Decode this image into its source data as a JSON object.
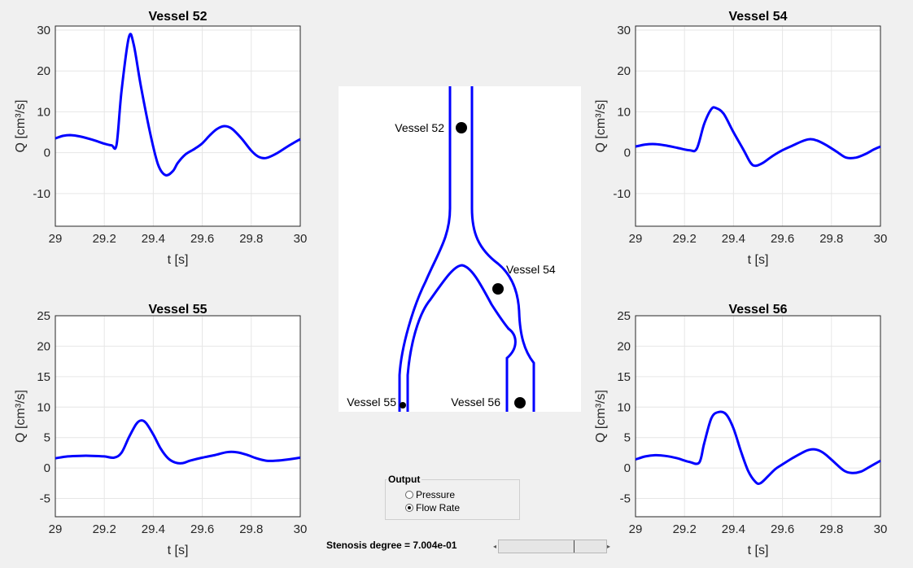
{
  "plots": [
    {
      "name": "vessel-52",
      "title": "Vessel 52",
      "ylabel": "Q [cm³/s]",
      "xlabel": "t [s]",
      "yticks": [
        "30",
        "20",
        "10",
        "0",
        "-10"
      ],
      "xticks": [
        "29",
        "29.2",
        "29.4",
        "29.6",
        "29.8",
        "30"
      ]
    },
    {
      "name": "vessel-54",
      "title": "Vessel 54",
      "ylabel": "Q [cm³/s]",
      "xlabel": "t [s]",
      "yticks": [
        "30",
        "20",
        "10",
        "0",
        "-10"
      ],
      "xticks": [
        "29",
        "29.2",
        "29.4",
        "29.6",
        "29.8",
        "30"
      ]
    },
    {
      "name": "vessel-55",
      "title": "Vessel 55",
      "ylabel": "Q [cm³/s]",
      "xlabel": "t [s]",
      "yticks": [
        "25",
        "20",
        "15",
        "10",
        "5",
        "0",
        "-5"
      ],
      "xticks": [
        "29",
        "29.2",
        "29.4",
        "29.6",
        "29.8",
        "30"
      ]
    },
    {
      "name": "vessel-56",
      "title": "Vessel 56",
      "ylabel": "Q [cm³/s]",
      "xlabel": "t [s]",
      "yticks": [
        "25",
        "20",
        "15",
        "10",
        "5",
        "0",
        "-5"
      ],
      "xticks": [
        "29",
        "29.2",
        "29.4",
        "29.6",
        "29.8",
        "30"
      ]
    }
  ],
  "chart_data": [
    {
      "type": "line",
      "title": "Vessel 52",
      "xlabel": "t [s]",
      "ylabel": "Q [cm³/s]",
      "xlim": [
        29,
        30
      ],
      "ylim": [
        -18,
        31
      ],
      "series": [
        {
          "color": "#0000ff",
          "x": [
            29,
            29.03,
            29.06,
            29.1,
            29.15,
            29.2,
            29.23,
            29.25,
            29.27,
            29.3,
            29.32,
            29.35,
            29.39,
            29.42,
            29.45,
            29.48,
            29.5,
            29.53,
            29.57,
            29.6,
            29.63,
            29.66,
            29.69,
            29.72,
            29.76,
            29.8,
            29.83,
            29.86,
            29.9,
            29.94,
            29.97,
            30
          ],
          "y": [
            3.5,
            4.1,
            4.3,
            4.0,
            3.2,
            2.2,
            1.8,
            2.0,
            15,
            28.2,
            26.5,
            16,
            4,
            -3,
            -5.5,
            -4.5,
            -2.5,
            -0.5,
            1,
            2.3,
            4.2,
            5.8,
            6.5,
            5.9,
            3.5,
            0.5,
            -1,
            -1.3,
            -0.3,
            1.2,
            2.3,
            3.3
          ]
        }
      ]
    },
    {
      "type": "line",
      "title": "Vessel 54",
      "xlabel": "t [s]",
      "ylabel": "Q [cm³/s]",
      "xlim": [
        29,
        30
      ],
      "ylim": [
        -18,
        31
      ],
      "series": [
        {
          "color": "#0000ff",
          "x": [
            29,
            29.04,
            29.08,
            29.12,
            29.17,
            29.22,
            29.25,
            29.28,
            29.31,
            29.33,
            29.36,
            29.4,
            29.44,
            29.47,
            29.49,
            29.52,
            29.56,
            29.6,
            29.64,
            29.68,
            29.71,
            29.74,
            29.78,
            29.82,
            29.86,
            29.9,
            29.94,
            29.97,
            30
          ],
          "y": [
            1.5,
            2.0,
            2.1,
            1.8,
            1.2,
            0.6,
            1.0,
            7,
            10.7,
            10.9,
            9.5,
            5,
            0.8,
            -2.5,
            -3.2,
            -2.5,
            -0.8,
            0.6,
            1.7,
            2.8,
            3.3,
            3.0,
            1.8,
            0.3,
            -1.2,
            -1.2,
            -0.3,
            0.7,
            1.5
          ]
        }
      ]
    },
    {
      "type": "line",
      "title": "Vessel 55",
      "xlabel": "t [s]",
      "ylabel": "Q [cm³/s]",
      "xlim": [
        29,
        30
      ],
      "ylim": [
        -8,
        25
      ],
      "series": [
        {
          "color": "#0000ff",
          "x": [
            29,
            29.05,
            29.1,
            29.15,
            29.2,
            29.24,
            29.27,
            29.3,
            29.33,
            29.35,
            29.37,
            29.4,
            29.43,
            29.46,
            29.49,
            29.52,
            29.55,
            29.6,
            29.65,
            29.7,
            29.74,
            29.78,
            29.82,
            29.86,
            29.9,
            29.95,
            30
          ],
          "y": [
            1.6,
            1.9,
            2.0,
            2.0,
            1.9,
            1.7,
            2.5,
            5,
            7.2,
            7.8,
            7.4,
            5.5,
            3.2,
            1.6,
            0.9,
            0.8,
            1.2,
            1.7,
            2.1,
            2.6,
            2.6,
            2.2,
            1.6,
            1.2,
            1.2,
            1.4,
            1.7
          ]
        }
      ]
    },
    {
      "type": "line",
      "title": "Vessel 56",
      "xlabel": "t [s]",
      "ylabel": "Q [cm³/s]",
      "xlim": [
        29,
        30
      ],
      "ylim": [
        -8,
        25
      ],
      "series": [
        {
          "color": "#0000ff",
          "x": [
            29,
            29.04,
            29.08,
            29.12,
            29.17,
            29.22,
            29.26,
            29.28,
            29.31,
            29.34,
            29.37,
            29.4,
            29.43,
            29.46,
            29.49,
            29.51,
            29.54,
            29.57,
            29.6,
            29.64,
            29.68,
            29.71,
            29.74,
            29.77,
            29.81,
            29.85,
            29.88,
            29.92,
            29.96,
            30
          ],
          "y": [
            1.4,
            1.9,
            2.1,
            2.0,
            1.6,
            1.0,
            0.9,
            4,
            8.2,
            9.2,
            8.8,
            6.5,
            2.8,
            -0.5,
            -2.3,
            -2.5,
            -1.4,
            -0.2,
            0.6,
            1.6,
            2.5,
            3.0,
            3.0,
            2.4,
            1.0,
            -0.4,
            -0.8,
            -0.6,
            0.3,
            1.2
          ]
        }
      ]
    }
  ],
  "diagram": {
    "labels": {
      "v52": "Vessel 52",
      "v54": "Vessel 54",
      "v55": "Vessel 55",
      "v56": "Vessel 56"
    }
  },
  "controls": {
    "output_title": "Output",
    "options": [
      "Pressure",
      "Flow Rate"
    ],
    "selected": "Flow Rate",
    "stenosis_label": "Stenosis degree = 7.004e-01",
    "slider_value": 0.7004,
    "slider_left_arrow": "◂",
    "slider_right_arrow": "▸"
  },
  "colors": {
    "line": "#0000ff",
    "axes_background": "#ffffff",
    "figure_background": "#f0f0f0",
    "grid": "#e6e6e6"
  }
}
